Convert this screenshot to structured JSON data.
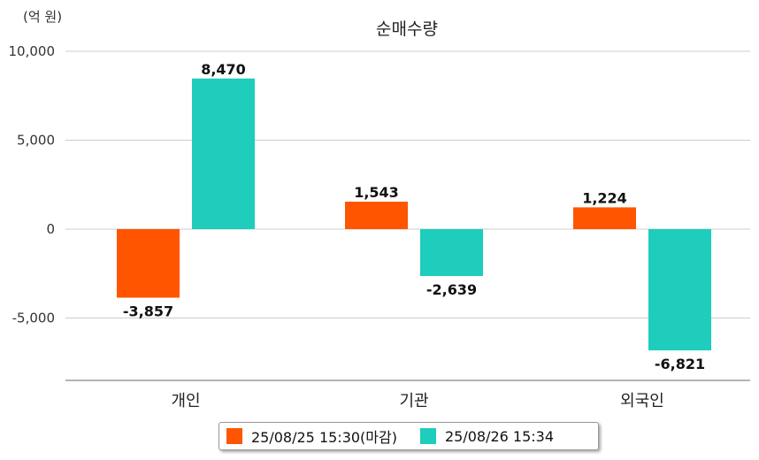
{
  "unit_label": "(억 원)",
  "chart_data": {
    "type": "bar",
    "title": "순매수량",
    "categories": [
      "개인",
      "기관",
      "외국인"
    ],
    "series": [
      {
        "name": "25/08/25 15:30(마감)",
        "color": "#ff5500",
        "values": [
          -3857,
          1543,
          1224
        ],
        "labels": [
          "-3,857",
          "1,543",
          "1,224"
        ]
      },
      {
        "name": "25/08/26 15:34",
        "color": "#1ecdbb",
        "values": [
          8470,
          -2639,
          -6821
        ],
        "labels": [
          "8,470",
          "-2,639",
          "-6,821"
        ]
      }
    ],
    "y_ticks": [
      10000,
      5000,
      0,
      -5000
    ],
    "y_tick_labels": [
      "10,000",
      "5,000",
      "0",
      "-5,000"
    ],
    "ylim": [
      -8500,
      10000
    ],
    "grid": true,
    "legend_position": "bottom"
  }
}
